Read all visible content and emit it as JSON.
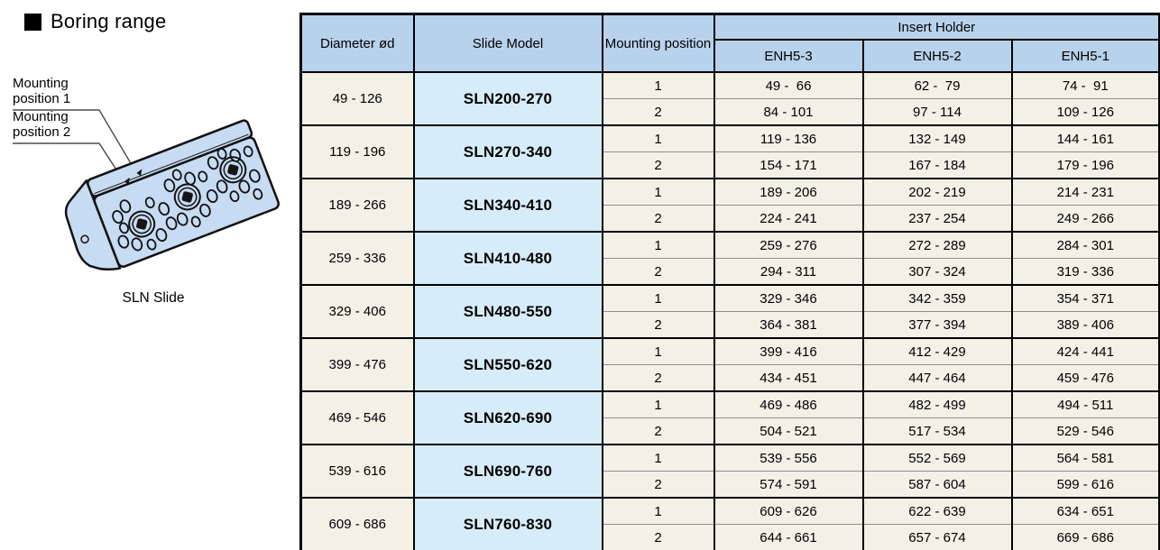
{
  "section": {
    "title": "Boring range"
  },
  "illustration": {
    "caption": "SLN Slide",
    "mount_labels": [
      "Mounting position 1",
      "Mounting position 2"
    ],
    "slide_fill": "#c7dbf2"
  },
  "table": {
    "headers": {
      "diameter": "Diameter ød",
      "slide_model": "Slide Model",
      "mounting_position": "Mounting position",
      "insert_holder": "Insert Holder",
      "holder_columns": [
        "ENH5-3",
        "ENH5-2",
        "ENH5-1"
      ]
    },
    "rows": [
      {
        "diameter": "49 - 126",
        "model": "SLN200-270",
        "positions": [
          {
            "position": "1",
            "enh5_3": "49 -  66",
            "enh5_2": "62 -  79",
            "enh5_1": "74 -  91"
          },
          {
            "position": "2",
            "enh5_3": "84 - 101",
            "enh5_2": "97 - 114",
            "enh5_1": "109 - 126"
          }
        ]
      },
      {
        "diameter": "119 - 196",
        "model": "SLN270-340",
        "positions": [
          {
            "position": "1",
            "enh5_3": "119 - 136",
            "enh5_2": "132 - 149",
            "enh5_1": "144 - 161"
          },
          {
            "position": "2",
            "enh5_3": "154 - 171",
            "enh5_2": "167 - 184",
            "enh5_1": "179 - 196"
          }
        ]
      },
      {
        "diameter": "189 - 266",
        "model": "SLN340-410",
        "positions": [
          {
            "position": "1",
            "enh5_3": "189 - 206",
            "enh5_2": "202 - 219",
            "enh5_1": "214 - 231"
          },
          {
            "position": "2",
            "enh5_3": "224 - 241",
            "enh5_2": "237 - 254",
            "enh5_1": "249 - 266"
          }
        ]
      },
      {
        "diameter": "259 - 336",
        "model": "SLN410-480",
        "positions": [
          {
            "position": "1",
            "enh5_3": "259 - 276",
            "enh5_2": "272 - 289",
            "enh5_1": "284 - 301"
          },
          {
            "position": "2",
            "enh5_3": "294 - 311",
            "enh5_2": "307 - 324",
            "enh5_1": "319 - 336"
          }
        ]
      },
      {
        "diameter": "329 - 406",
        "model": "SLN480-550",
        "positions": [
          {
            "position": "1",
            "enh5_3": "329 - 346",
            "enh5_2": "342 - 359",
            "enh5_1": "354 - 371"
          },
          {
            "position": "2",
            "enh5_3": "364 - 381",
            "enh5_2": "377 - 394",
            "enh5_1": "389 - 406"
          }
        ]
      },
      {
        "diameter": "399 - 476",
        "model": "SLN550-620",
        "positions": [
          {
            "position": "1",
            "enh5_3": "399 - 416",
            "enh5_2": "412 - 429",
            "enh5_1": "424 - 441"
          },
          {
            "position": "2",
            "enh5_3": "434 - 451",
            "enh5_2": "447 - 464",
            "enh5_1": "459 - 476"
          }
        ]
      },
      {
        "diameter": "469 - 546",
        "model": "SLN620-690",
        "positions": [
          {
            "position": "1",
            "enh5_3": "469 - 486",
            "enh5_2": "482 - 499",
            "enh5_1": "494 - 511"
          },
          {
            "position": "2",
            "enh5_3": "504 - 521",
            "enh5_2": "517 - 534",
            "enh5_1": "529 - 546"
          }
        ]
      },
      {
        "diameter": "539 - 616",
        "model": "SLN690-760",
        "positions": [
          {
            "position": "1",
            "enh5_3": "539 - 556",
            "enh5_2": "552 - 569",
            "enh5_1": "564 - 581"
          },
          {
            "position": "2",
            "enh5_3": "574 - 591",
            "enh5_2": "587 - 604",
            "enh5_1": "599 - 616"
          }
        ]
      },
      {
        "diameter": "609 - 686",
        "model": "SLN760-830",
        "positions": [
          {
            "position": "1",
            "enh5_3": "609 - 626",
            "enh5_2": "622 - 639",
            "enh5_1": "634 - 651"
          },
          {
            "position": "2",
            "enh5_3": "644 - 661",
            "enh5_2": "657 - 674",
            "enh5_1": "669 - 686"
          }
        ]
      }
    ]
  },
  "colors": {
    "header_bg": "#b9d2ec",
    "model_bg": "#d7ecf9",
    "cell_bg": "#f3f0e6",
    "thin_divider": "#8f8f8f",
    "border": "#000000",
    "slide_fill": "#c7dbf2"
  }
}
